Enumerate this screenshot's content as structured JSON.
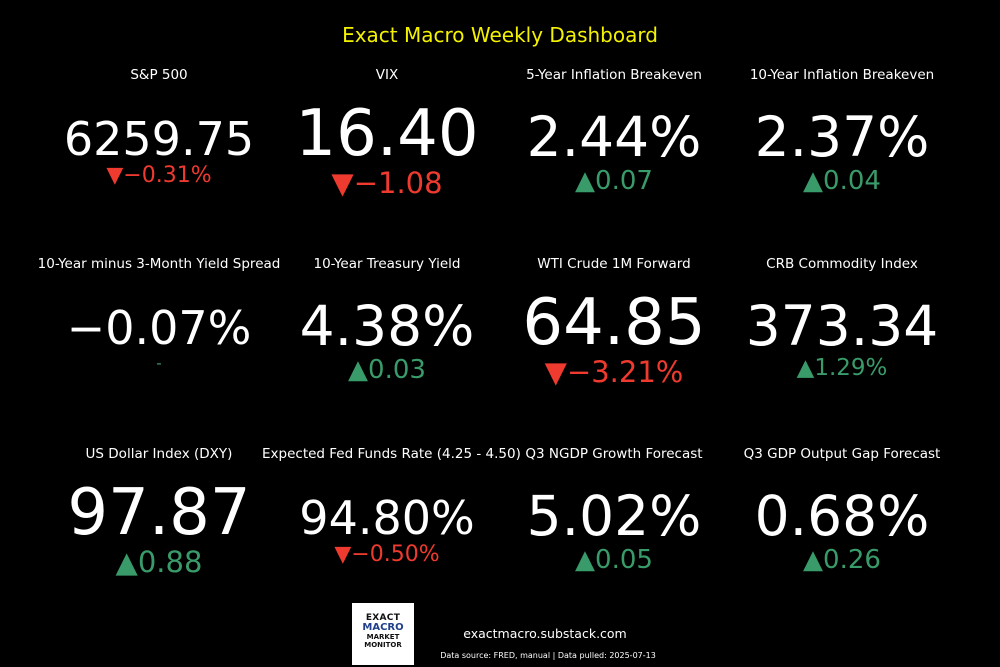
{
  "title": "Exact Macro Weekly Dashboard",
  "colors": {
    "title": "#f5f200",
    "up": "#3a9b6a",
    "down": "#ee3a2f",
    "background": "#000000",
    "text": "#ffffff"
  },
  "tiles": [
    {
      "label": "S&P 500",
      "value": "6259.75",
      "arrow": "▼",
      "change": "−0.31%",
      "direction": "down"
    },
    {
      "label": "VIX",
      "value": "16.40",
      "arrow": "▼",
      "change": "−1.08",
      "direction": "down"
    },
    {
      "label": "5-Year Inflation Breakeven",
      "value": "2.44%",
      "arrow": "▲",
      "change": "0.07",
      "direction": "up"
    },
    {
      "label": "10-Year Inflation Breakeven",
      "value": "2.37%",
      "arrow": "▲",
      "change": "0.04",
      "direction": "up"
    },
    {
      "label": "10-Year minus 3-Month Yield Spread",
      "value": "−0.07%",
      "arrow": "",
      "change": "-",
      "direction": "flat"
    },
    {
      "label": "10-Year Treasury Yield",
      "value": "4.38%",
      "arrow": "▲",
      "change": "0.03",
      "direction": "up"
    },
    {
      "label": "WTI Crude 1M Forward",
      "value": "64.85",
      "arrow": "▼",
      "change": "−3.21%",
      "direction": "down"
    },
    {
      "label": "CRB Commodity Index",
      "value": "373.34",
      "arrow": "▲",
      "change": "1.29%",
      "direction": "up"
    },
    {
      "label": "US Dollar Index (DXY)",
      "value": "97.87",
      "arrow": "▲",
      "change": "0.88",
      "direction": "up"
    },
    {
      "label": "Expected Fed Funds Rate (4.25 - 4.50)",
      "value": "94.80%",
      "arrow": "▼",
      "change": "−0.50%",
      "direction": "down"
    },
    {
      "label": "Q3 NGDP Growth Forecast",
      "value": "5.02%",
      "arrow": "▲",
      "change": "0.05",
      "direction": "up"
    },
    {
      "label": "Q3 GDP Output Gap Forecast",
      "value": "0.68%",
      "arrow": "▲",
      "change": "0.26",
      "direction": "up"
    }
  ],
  "footer": {
    "logo": {
      "line1": "EXACT",
      "line2": "MACRO",
      "line3": "MARKET",
      "line4": "MONITOR"
    },
    "url": "exactmacro.substack.com",
    "source": "Data source: FRED, manual | Data pulled: 2025-07-13"
  }
}
